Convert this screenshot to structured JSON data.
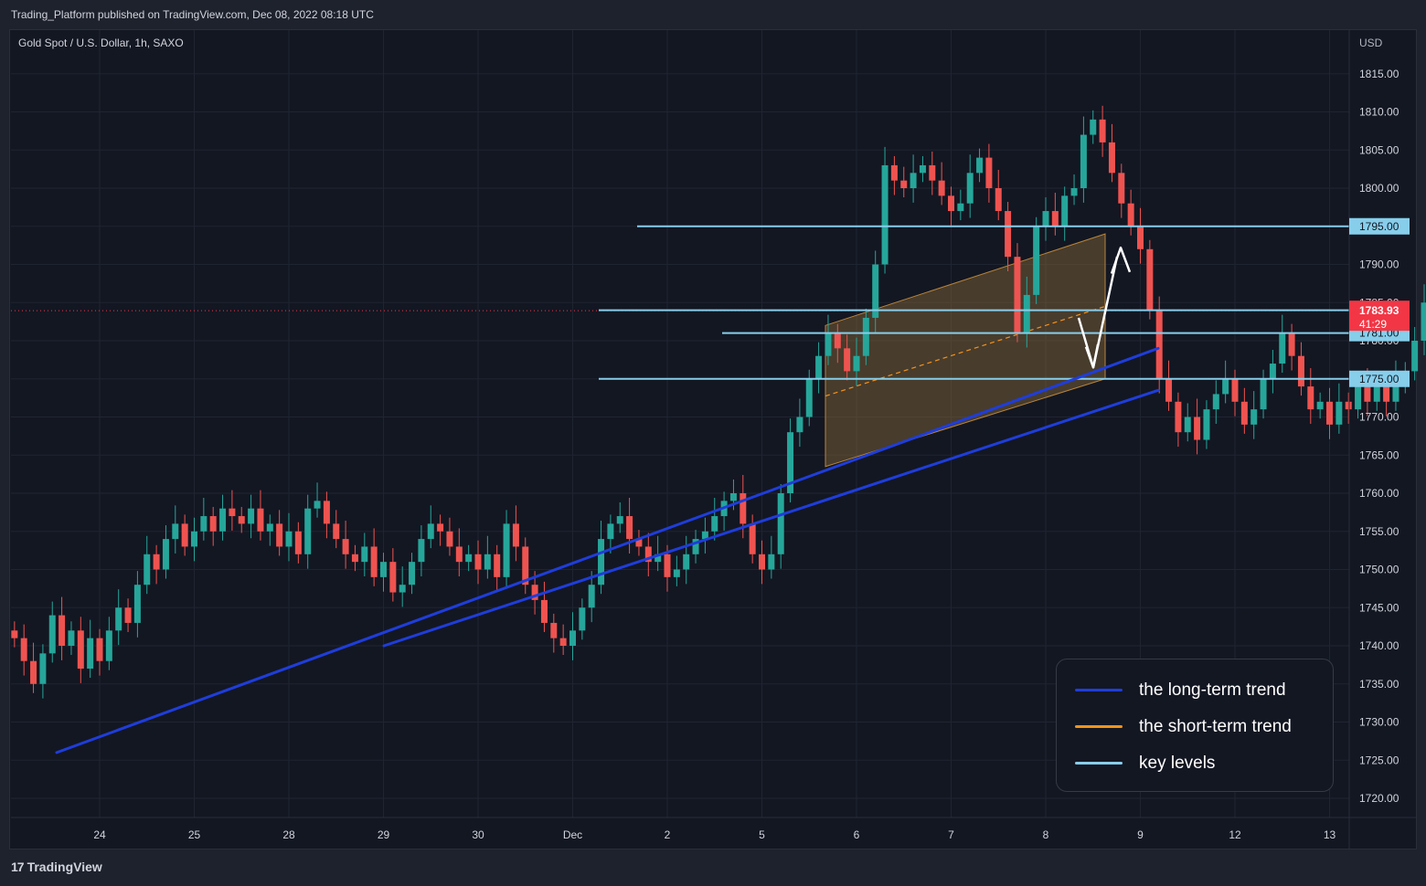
{
  "header": {
    "publish_line": "Trading_Platform published on TradingView.com, Dec 08, 2022 08:18 UTC"
  },
  "symbol": {
    "label": "Gold Spot / U.S. Dollar, 1h, SAXO",
    "currency": "USD"
  },
  "footer": {
    "brand": "TradingView",
    "brand_mark": "17"
  },
  "colors": {
    "background": "#131722",
    "grid": "#1f2431",
    "bull": "#26a69a",
    "bear": "#ef5350",
    "long_trend": "#1f3ddb",
    "short_trend": "#f7931a",
    "key_level": "#87ceeb",
    "level_tag": "#87ceeb",
    "price_tag": "#f23645",
    "channel_fill": "#8a6b3a",
    "arrow": "#ffffff"
  },
  "legend": {
    "items": [
      {
        "label": "the long-term trend",
        "color": "#1f3ddb"
      },
      {
        "label": "the short-term trend",
        "color": "#f7931a"
      },
      {
        "label": "key levels",
        "color": "#87ceeb"
      }
    ]
  },
  "chart_data": {
    "type": "candlestick",
    "title": "Gold Spot / U.S. Dollar, 1h, SAXO",
    "y_unit": "USD",
    "ylim": [
      1717,
      1820
    ],
    "y_ticks": [
      "1720.00",
      "1725.00",
      "1730.00",
      "1735.00",
      "1740.00",
      "1745.00",
      "1750.00",
      "1755.00",
      "1760.00",
      "1765.00",
      "1770.00",
      "1775.00",
      "1780.00",
      "1785.00",
      "1790.00",
      "1795.00",
      "1800.00",
      "1805.00",
      "1810.00",
      "1815.00"
    ],
    "x_ticks": [
      {
        "label": "24",
        "t": 9
      },
      {
        "label": "25",
        "t": 19
      },
      {
        "label": "28",
        "t": 29
      },
      {
        "label": "29",
        "t": 39
      },
      {
        "label": "30",
        "t": 49
      },
      {
        "label": "Dec",
        "t": 59
      },
      {
        "label": "2",
        "t": 69
      },
      {
        "label": "5",
        "t": 79
      },
      {
        "label": "6",
        "t": 89
      },
      {
        "label": "7",
        "t": 99
      },
      {
        "label": "8",
        "t": 109
      },
      {
        "label": "9",
        "t": 119
      },
      {
        "label": "12",
        "t": 129
      },
      {
        "label": "13",
        "t": 139
      }
    ],
    "x_unit_note": "t = hourly bar index scale where each trading day spans 10 units",
    "closes": [
      [
        0,
        1741
      ],
      [
        1,
        1738
      ],
      [
        2,
        1735
      ],
      [
        3,
        1739
      ],
      [
        4,
        1744
      ],
      [
        5,
        1740
      ],
      [
        6,
        1742
      ],
      [
        7,
        1737
      ],
      [
        8,
        1741
      ],
      [
        9,
        1738
      ],
      [
        10,
        1742
      ],
      [
        11,
        1745
      ],
      [
        12,
        1743
      ],
      [
        13,
        1748
      ],
      [
        14,
        1752
      ],
      [
        15,
        1750
      ],
      [
        16,
        1754
      ],
      [
        17,
        1756
      ],
      [
        18,
        1753
      ],
      [
        19,
        1755
      ],
      [
        20,
        1757
      ],
      [
        21,
        1755
      ],
      [
        22,
        1758
      ],
      [
        23,
        1757
      ],
      [
        24,
        1756
      ],
      [
        25,
        1758
      ],
      [
        26,
        1755
      ],
      [
        27,
        1756
      ],
      [
        28,
        1753
      ],
      [
        29,
        1755
      ],
      [
        30,
        1752
      ],
      [
        31,
        1758
      ],
      [
        32,
        1759
      ],
      [
        33,
        1756
      ],
      [
        34,
        1754
      ],
      [
        35,
        1752
      ],
      [
        36,
        1751
      ],
      [
        37,
        1753
      ],
      [
        38,
        1749
      ],
      [
        39,
        1751
      ],
      [
        40,
        1747
      ],
      [
        41,
        1748
      ],
      [
        42,
        1751
      ],
      [
        43,
        1754
      ],
      [
        44,
        1756
      ],
      [
        45,
        1755
      ],
      [
        46,
        1753
      ],
      [
        47,
        1751
      ],
      [
        48,
        1752
      ],
      [
        49,
        1750
      ],
      [
        50,
        1752
      ],
      [
        51,
        1749
      ],
      [
        52,
        1756
      ],
      [
        53,
        1753
      ],
      [
        54,
        1748
      ],
      [
        55,
        1746
      ],
      [
        56,
        1743
      ],
      [
        57,
        1741
      ],
      [
        58,
        1740
      ],
      [
        59,
        1742
      ],
      [
        60,
        1745
      ],
      [
        61,
        1748
      ],
      [
        62,
        1754
      ],
      [
        63,
        1756
      ],
      [
        64,
        1757
      ],
      [
        65,
        1754
      ],
      [
        66,
        1753
      ],
      [
        67,
        1751
      ],
      [
        68,
        1752
      ],
      [
        69,
        1749
      ],
      [
        70,
        1750
      ],
      [
        71,
        1752
      ],
      [
        72,
        1754
      ],
      [
        73,
        1755
      ],
      [
        74,
        1757
      ],
      [
        75,
        1759
      ],
      [
        76,
        1760
      ],
      [
        77,
        1756
      ],
      [
        78,
        1752
      ],
      [
        79,
        1750
      ],
      [
        80,
        1752
      ],
      [
        81,
        1760
      ],
      [
        82,
        1768
      ],
      [
        83,
        1770
      ],
      [
        84,
        1775
      ],
      [
        85,
        1778
      ],
      [
        86,
        1781
      ],
      [
        87,
        1779
      ],
      [
        88,
        1776
      ],
      [
        89,
        1778
      ],
      [
        90,
        1783
      ],
      [
        91,
        1790
      ],
      [
        92,
        1803
      ],
      [
        93,
        1801
      ],
      [
        94,
        1800
      ],
      [
        95,
        1802
      ],
      [
        96,
        1803
      ],
      [
        97,
        1801
      ],
      [
        98,
        1799
      ],
      [
        99,
        1797
      ],
      [
        100,
        1798
      ],
      [
        101,
        1802
      ],
      [
        102,
        1804
      ],
      [
        103,
        1800
      ],
      [
        104,
        1797
      ],
      [
        105,
        1791
      ],
      [
        106,
        1781
      ],
      [
        107,
        1786
      ],
      [
        108,
        1795
      ],
      [
        109,
        1797
      ],
      [
        110,
        1795
      ],
      [
        111,
        1799
      ],
      [
        112,
        1800
      ],
      [
        113,
        1807
      ],
      [
        114,
        1809
      ],
      [
        115,
        1806
      ],
      [
        116,
        1802
      ],
      [
        117,
        1798
      ],
      [
        118,
        1795
      ],
      [
        119,
        1792
      ],
      [
        120,
        1784
      ],
      [
        121,
        1775
      ],
      [
        122,
        1772
      ],
      [
        123,
        1768
      ],
      [
        124,
        1770
      ],
      [
        125,
        1767
      ],
      [
        126,
        1771
      ],
      [
        127,
        1773
      ],
      [
        128,
        1775
      ],
      [
        129,
        1772
      ],
      [
        130,
        1769
      ],
      [
        131,
        1771
      ],
      [
        132,
        1775
      ],
      [
        133,
        1777
      ],
      [
        134,
        1781
      ],
      [
        135,
        1778
      ],
      [
        136,
        1774
      ],
      [
        137,
        1771
      ],
      [
        138,
        1772
      ],
      [
        139,
        1769
      ],
      [
        140,
        1772
      ],
      [
        141,
        1771
      ],
      [
        142,
        1774
      ],
      [
        143,
        1772
      ],
      [
        144,
        1774
      ],
      [
        145,
        1772
      ],
      [
        146,
        1775
      ],
      [
        147,
        1776
      ],
      [
        148,
        1780
      ],
      [
        149,
        1785
      ],
      [
        150,
        1789
      ],
      [
        151,
        1786
      ],
      [
        152,
        1785
      ],
      [
        153,
        1783
      ],
      [
        154,
        1784
      ],
      [
        155,
        1782
      ],
      [
        156,
        1785
      ],
      [
        157,
        1784
      ]
    ],
    "key_levels": [
      {
        "label": "1795.00",
        "price": 1795.0
      },
      {
        "label": "1784.00",
        "price": 1784.0
      },
      {
        "label": "1781.00",
        "price": 1781.0
      },
      {
        "label": "1775.00",
        "price": 1775.0
      }
    ],
    "current_price": {
      "label": "1783.93",
      "countdown": "41:29",
      "price": 1783.93
    },
    "long_trend_lines": [
      {
        "from": [
          1723.5,
          1726
        ],
        "to": [
          1865,
          1779
        ]
      },
      {
        "from": [
          1730,
          1740
        ],
        "to": [
          1865,
          1773.5
        ]
      }
    ],
    "short_trend_channel": {
      "lower": [
        1763.5,
        1775
      ],
      "upper": [
        1782,
        1794
      ]
    },
    "projection_arrows": [
      "up from 1783 toward 1790",
      "down to about 1776 then up"
    ]
  }
}
